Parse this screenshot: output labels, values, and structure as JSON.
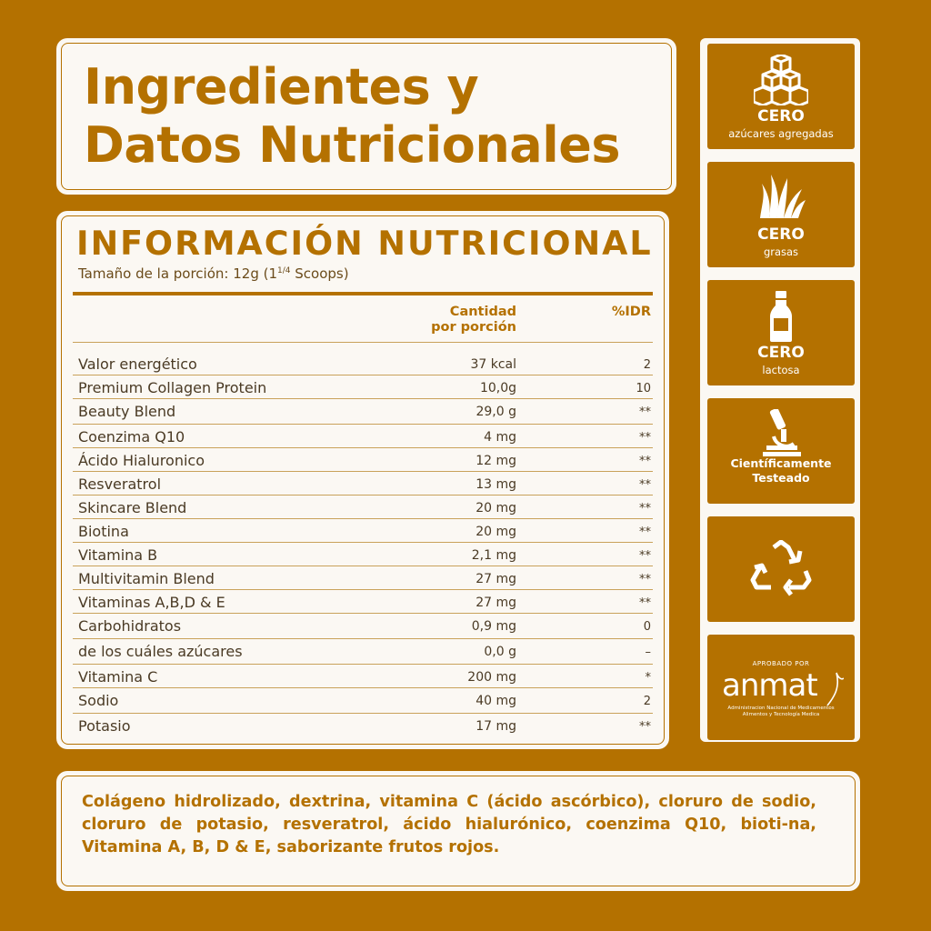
{
  "title": {
    "line1": "Ingredientes y",
    "line2": "Datos Nutricionales"
  },
  "nutrition": {
    "heading": "INFORMACIÓN NUTRICIONAL",
    "serving_prefix": "Tamaño de la porción: 12g (1",
    "serving_fraction": "1/4",
    "serving_suffix": " Scoops)",
    "col_amount_1": "Cantidad",
    "col_amount_2": "por porción",
    "col_idr": "%IDR",
    "rows": [
      {
        "name": "Valor energético",
        "amount": "37 kcal",
        "idr": "2"
      },
      {
        "name": "Premium Collagen Protein",
        "amount": "10,0g",
        "idr": "10"
      },
      {
        "name": "Beauty Blend",
        "amount": "29,0 g",
        "idr": "**"
      },
      {
        "name": "Coenzima Q10",
        "amount": "4 mg",
        "idr": "**"
      },
      {
        "name": "Ácido Hialuronico",
        "amount": "12 mg",
        "idr": "**"
      },
      {
        "name": "Resveratrol",
        "amount": "13 mg",
        "idr": "**"
      },
      {
        "name": "Skincare Blend",
        "amount": "20 mg",
        "idr": "**"
      },
      {
        "name": "Biotina",
        "amount": "20 mg",
        "idr": "**"
      },
      {
        "name": "Vitamina B",
        "amount": "2,1 mg",
        "idr": "**"
      },
      {
        "name": "Multivitamin Blend",
        "amount": "27 mg",
        "idr": "**"
      },
      {
        "name": "Vitaminas A,B,D & E",
        "amount": "27 mg",
        "idr": "**"
      },
      {
        "name": "Carbohidratos",
        "amount": "0,9 mg",
        "idr": "0"
      },
      {
        "name": "de los cuáles azúcares",
        "amount": "0,0 g",
        "idr": "–"
      },
      {
        "name": "Vitamina C",
        "amount": "200 mg",
        "idr": "*"
      },
      {
        "name": "Sodio",
        "amount": "40 mg",
        "idr": "2"
      },
      {
        "name": "Potasio",
        "amount": "17 mg",
        "idr": "**"
      }
    ]
  },
  "badges": {
    "sugar": {
      "icon": "sugar-cubes-icon",
      "big": "CERO",
      "small": "azúcares agregadas"
    },
    "fat": {
      "icon": "grass-icon",
      "big": "CERO",
      "small": "grasas"
    },
    "lactose": {
      "icon": "milk-bottle-icon",
      "big": "CERO",
      "small": "lactosa"
    },
    "science": {
      "icon": "microscope-icon",
      "line1": "Científicamente",
      "line2": "Testeado"
    },
    "recycle": {
      "icon": "recycle-icon"
    },
    "anmat": {
      "caption": "APROBADO POR",
      "logo": "anmat",
      "sub1": "Administracion Nacional de Medicamentos",
      "sub2": "Alimentos y Tecnología Medica"
    }
  },
  "ingredients": "Colágeno hidrolizado, dextrina, vitamina C (ácido ascórbico), cloruro de sodio, cloruro de potasio, resveratrol, ácido hialurónico, coenzima Q10, bioti-na, Vitamina A, B, D & E, saborizante frutos rojos.",
  "colors": {
    "accent": "#b47100",
    "card": "#fbf8f3"
  }
}
